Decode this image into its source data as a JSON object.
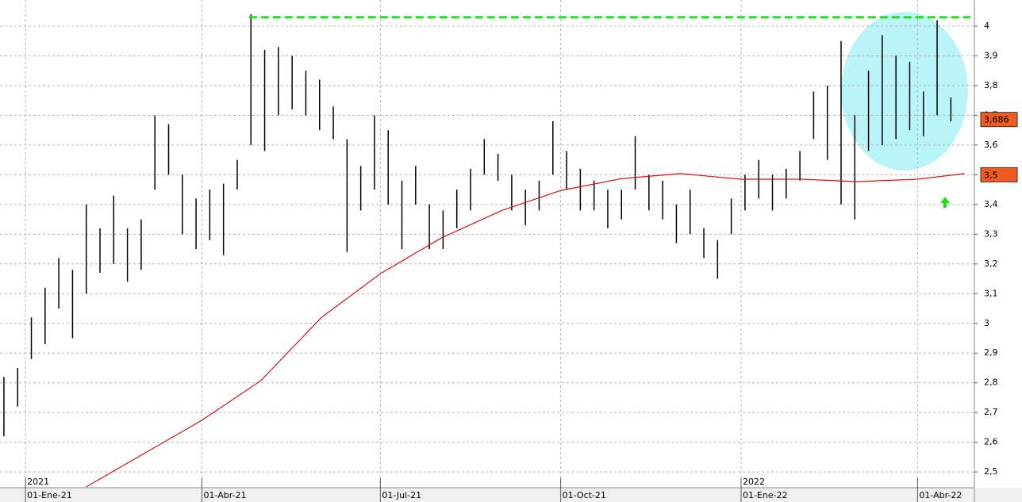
{
  "chart_data": {
    "type": "ohlc",
    "xlim": [
      "2020-12-19",
      "2022-04-30"
    ],
    "ylim": [
      2.447,
      4.088
    ],
    "yticks": [
      {
        "value": 2.5,
        "label": "2,5"
      },
      {
        "value": 2.6,
        "label": "2,6"
      },
      {
        "value": 2.7,
        "label": "2,7"
      },
      {
        "value": 2.8,
        "label": "2,8"
      },
      {
        "value": 2.9,
        "label": "2,9"
      },
      3,
      {
        "value": 3.1,
        "label": "3,1"
      },
      {
        "value": 3.2,
        "label": "3,2"
      },
      {
        "value": 3.3,
        "label": "3,3"
      },
      {
        "value": 3.4,
        "label": "3,4"
      },
      {
        "value": 3.5,
        "label": "3,5"
      },
      {
        "value": 3.6,
        "label": "3,6"
      },
      {
        "value": 3.7,
        "label": "3,7"
      },
      {
        "value": 3.8,
        "label": "3,8"
      },
      {
        "value": 3.9,
        "label": "3,9"
      },
      4
    ],
    "xticks": [
      {
        "value": "2021-01-01",
        "label": "01-Ene-21"
      },
      {
        "value": "2021-04-01",
        "label": "01-Abr-21"
      },
      {
        "value": "2021-07-01",
        "label": "01-Jul-21"
      },
      {
        "value": "2021-10-01",
        "label": "01-Oct-21"
      },
      {
        "value": "2022-01-01",
        "label": "01-Ene-22"
      },
      {
        "value": "2022-04-01",
        "label": "01-Abr-22"
      }
    ],
    "year_labels": [
      {
        "value": "2021-01-01",
        "label": "2021"
      },
      {
        "value": "2022-01-01",
        "label": "2022"
      }
    ],
    "grid": true,
    "bars": {
      "color": "#000000",
      "x": [
        "2020-12-21",
        "2020-12-28",
        "2021-01-04",
        "2021-01-11",
        "2021-01-18",
        "2021-01-25",
        "2021-02-01",
        "2021-02-08",
        "2021-02-15",
        "2021-02-22",
        "2021-03-01",
        "2021-03-08",
        "2021-03-15",
        "2021-03-22",
        "2021-03-29",
        "2021-04-05",
        "2021-04-12",
        "2021-04-19",
        "2021-04-26",
        "2021-05-03",
        "2021-05-10",
        "2021-05-17",
        "2021-05-24",
        "2021-05-31",
        "2021-06-07",
        "2021-06-14",
        "2021-06-21",
        "2021-06-28",
        "2021-07-05",
        "2021-07-12",
        "2021-07-19",
        "2021-07-26",
        "2021-08-02",
        "2021-08-09",
        "2021-08-16",
        "2021-08-23",
        "2021-08-30",
        "2021-09-06",
        "2021-09-13",
        "2021-09-20",
        "2021-09-27",
        "2021-10-04",
        "2021-10-11",
        "2021-10-18",
        "2021-10-25",
        "2021-11-01",
        "2021-11-08",
        "2021-11-15",
        "2021-11-22",
        "2021-11-29",
        "2021-12-06",
        "2021-12-13",
        "2021-12-20",
        "2021-12-27",
        "2022-01-03",
        "2022-01-10",
        "2022-01-17",
        "2022-01-24",
        "2022-01-31",
        "2022-02-07",
        "2022-02-14",
        "2022-02-21",
        "2022-02-28",
        "2022-03-07",
        "2022-03-14",
        "2022-03-21",
        "2022-03-28",
        "2022-04-04",
        "2022-04-11",
        "2022-04-18"
      ],
      "high": [
        2.82,
        2.85,
        3.02,
        3.12,
        3.22,
        3.18,
        3.4,
        3.32,
        3.43,
        3.32,
        3.35,
        3.7,
        3.67,
        3.5,
        3.42,
        3.45,
        3.47,
        3.55,
        4.04,
        3.92,
        3.93,
        3.9,
        3.85,
        3.82,
        3.73,
        3.62,
        3.53,
        3.7,
        3.65,
        3.48,
        3.53,
        3.4,
        3.38,
        3.45,
        3.52,
        3.62,
        3.57,
        3.5,
        3.45,
        3.48,
        3.68,
        3.58,
        3.52,
        3.48,
        3.45,
        3.45,
        3.63,
        3.5,
        3.48,
        3.4,
        3.45,
        3.32,
        3.28,
        3.42,
        3.5,
        3.55,
        3.5,
        3.52,
        3.58,
        3.78,
        3.8,
        3.95,
        3.7,
        3.85,
        3.97,
        3.9,
        3.88,
        3.78,
        4.02,
        3.76
      ],
      "low": [
        2.62,
        2.72,
        2.88,
        2.93,
        3.05,
        2.95,
        3.1,
        3.17,
        3.2,
        3.14,
        3.18,
        3.45,
        3.5,
        3.3,
        3.25,
        3.28,
        3.23,
        3.45,
        3.6,
        3.58,
        3.7,
        3.72,
        3.7,
        3.65,
        3.62,
        3.24,
        3.38,
        3.45,
        3.4,
        3.25,
        3.4,
        3.25,
        3.25,
        3.32,
        3.38,
        3.5,
        3.48,
        3.38,
        3.33,
        3.38,
        3.5,
        3.45,
        3.38,
        3.38,
        3.32,
        3.35,
        3.45,
        3.38,
        3.35,
        3.27,
        3.3,
        3.22,
        3.15,
        3.3,
        3.38,
        3.42,
        3.38,
        3.42,
        3.48,
        3.62,
        3.55,
        3.4,
        3.35,
        3.58,
        3.6,
        3.62,
        3.65,
        3.63,
        3.7,
        3.68
      ]
    },
    "moving_average": {
      "color": "#e01010",
      "x": [
        "2021-02-01",
        "2021-04-01",
        "2021-05-01",
        "2021-06-01",
        "2021-07-01",
        "2021-08-01",
        "2021-09-01",
        "2021-10-01",
        "2021-11-01",
        "2021-12-01",
        "2022-01-01",
        "2022-02-01",
        "2022-03-01",
        "2022-04-01",
        "2022-04-25"
      ],
      "values": [
        2.45,
        2.674,
        2.807,
        3.02,
        3.167,
        3.287,
        3.38,
        3.447,
        3.487,
        3.504,
        3.485,
        3.485,
        3.477,
        3.485,
        3.504
      ]
    },
    "resistance": {
      "value": 4.03,
      "x": [
        "2021-04-25",
        "2022-04-28"
      ],
      "color": "#22dd22"
    },
    "price_tags": [
      {
        "value": 3.686,
        "label": "3,686"
      },
      {
        "value": 3.5,
        "label": "3,5"
      }
    ]
  }
}
